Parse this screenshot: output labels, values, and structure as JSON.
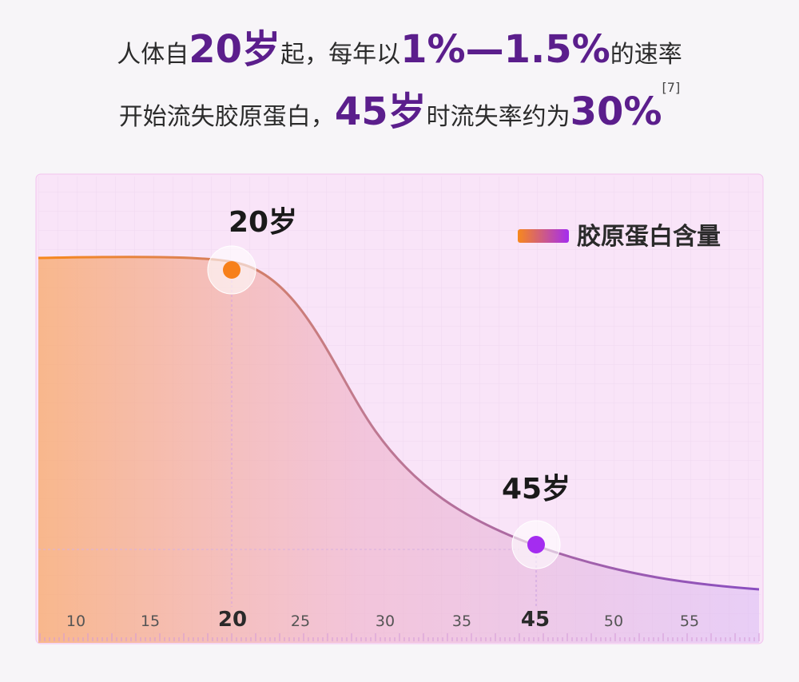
{
  "header": {
    "line1": [
      "人体自",
      "20岁",
      "起，每年以",
      "1%—1.5%",
      "的速率"
    ],
    "line2": [
      "开始流失胶原蛋白，",
      "45岁",
      "时流失率约为",
      "30%",
      "[7]"
    ]
  },
  "legend": "胶原蛋白含量",
  "annotations": [
    "20岁",
    "45岁"
  ],
  "x_axis": {
    "ticks": [
      "10",
      "15",
      "20",
      "25",
      "30",
      "35",
      "45",
      "50",
      "55"
    ]
  }
}
